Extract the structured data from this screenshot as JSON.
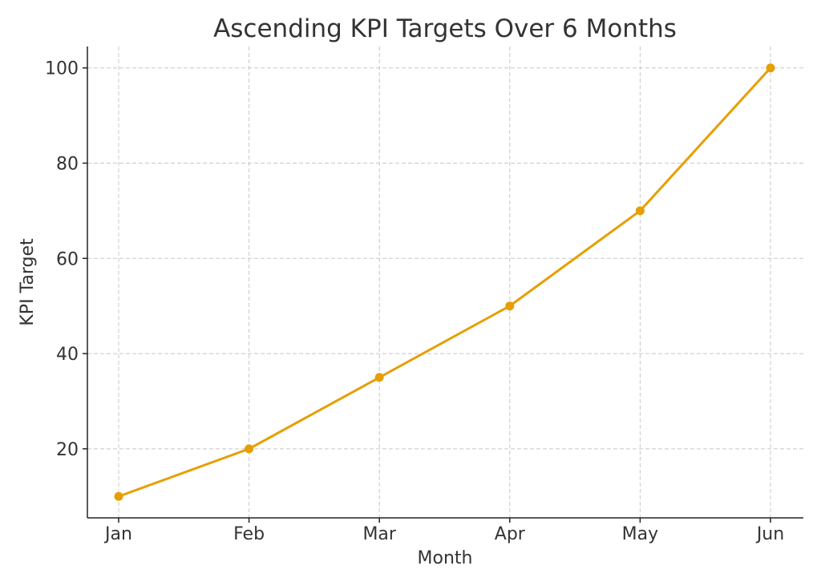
{
  "chart_data": {
    "type": "line",
    "title": "Ascending KPI Targets Over 6 Months",
    "xlabel": "Month",
    "ylabel": "KPI Target",
    "categories": [
      "Jan",
      "Feb",
      "Mar",
      "Apr",
      "May",
      "Jun"
    ],
    "series": [
      {
        "values": [
          10,
          20,
          35,
          50,
          70,
          100
        ],
        "color": "#e69f00"
      }
    ],
    "ylim": [
      5.5,
      104.5
    ],
    "yticks": [
      20,
      40,
      60,
      80,
      100
    ],
    "grid": true,
    "legend": "none",
    "marker": "circle"
  }
}
